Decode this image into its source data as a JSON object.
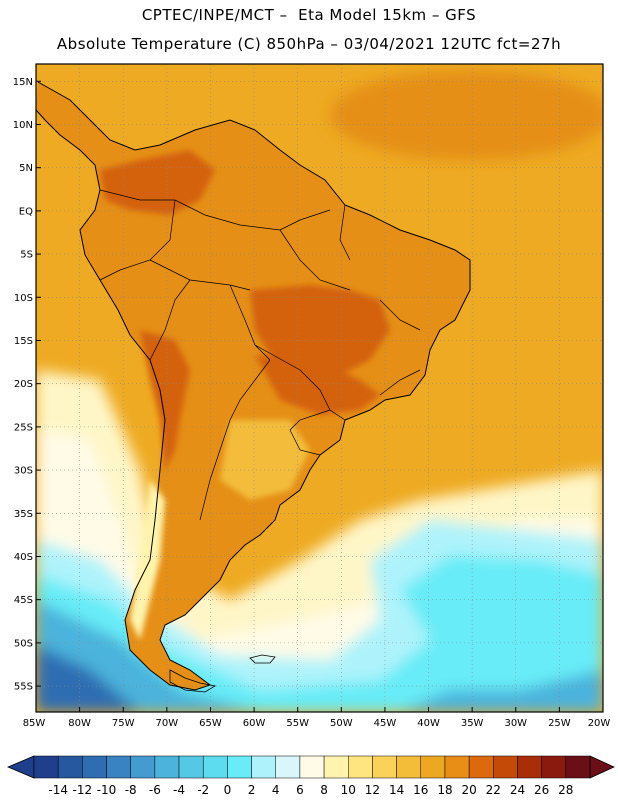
{
  "title": {
    "line1": "CPTEC/INPE/MCT –  Eta Model 15km – GFS",
    "line2": "Absolute Temperature (C) 850hPa – 03/04/2021 12UTC fct=27h"
  },
  "map": {
    "lon_range": [
      -85,
      -20
    ],
    "lat_range": [
      -58,
      17
    ],
    "lat_ticks": [
      {
        "v": 15,
        "label": "15N"
      },
      {
        "v": 10,
        "label": "10N"
      },
      {
        "v": 5,
        "label": "5N"
      },
      {
        "v": 0,
        "label": "EQ"
      },
      {
        "v": -5,
        "label": "5S"
      },
      {
        "v": -10,
        "label": "10S"
      },
      {
        "v": -15,
        "label": "15S"
      },
      {
        "v": -20,
        "label": "20S"
      },
      {
        "v": -25,
        "label": "25S"
      },
      {
        "v": -30,
        "label": "30S"
      },
      {
        "v": -35,
        "label": "35S"
      },
      {
        "v": -40,
        "label": "40S"
      },
      {
        "v": -45,
        "label": "45S"
      },
      {
        "v": -50,
        "label": "50S"
      },
      {
        "v": -55,
        "label": "55S"
      }
    ],
    "lon_ticks": [
      {
        "v": -85,
        "label": "85W"
      },
      {
        "v": -80,
        "label": "80W"
      },
      {
        "v": -75,
        "label": "75W"
      },
      {
        "v": -70,
        "label": "70W"
      },
      {
        "v": -65,
        "label": "65W"
      },
      {
        "v": -60,
        "label": "60W"
      },
      {
        "v": -55,
        "label": "55W"
      },
      {
        "v": -50,
        "label": "50W"
      },
      {
        "v": -45,
        "label": "45W"
      },
      {
        "v": -40,
        "label": "40W"
      },
      {
        "v": -35,
        "label": "35W"
      },
      {
        "v": -30,
        "label": "30W"
      },
      {
        "v": -25,
        "label": "25W"
      },
      {
        "v": -20,
        "label": "20W"
      }
    ]
  },
  "colorbar": {
    "labels": [
      "-14",
      "-12",
      "-10",
      "-8",
      "-6",
      "-4",
      "-2",
      "0",
      "2",
      "4",
      "6",
      "8",
      "10",
      "12",
      "14",
      "16",
      "18",
      "20",
      "22",
      "24",
      "26",
      "28"
    ],
    "low_color": "#1f3f8c",
    "high_color": "#6a0f18",
    "colors": [
      "#1f3f8c",
      "#2658a0",
      "#2f6db2",
      "#3a83c2",
      "#439bcf",
      "#4cb3dc",
      "#55c8e6",
      "#5edcef",
      "#68ecf7",
      "#aef3fb",
      "#d9f7fb",
      "#fffbe7",
      "#fff4ad",
      "#ffe580",
      "#fad25a",
      "#f3bd3a",
      "#eda821",
      "#e88d16",
      "#dc6a0c",
      "#c44a08",
      "#a82d09",
      "#8a1a0d",
      "#6a0f18"
    ]
  },
  "colors": {
    "ocean_warm": "#eeaa22",
    "ocean_hot": "#e58f16",
    "cool_pale": "#fff6c8",
    "cool_cream": "#fffbe7",
    "cyan_light": "#aef3fb",
    "cyan": "#68ecf7",
    "blue_mid": "#4cb3dc",
    "blue_dark": "#2f6db2",
    "land_warm": "#e58f16",
    "land_hot": "#d4620b",
    "land_cool": "#f3bd3a",
    "andes_cold": "#fff4ad",
    "outline": "#000000"
  }
}
